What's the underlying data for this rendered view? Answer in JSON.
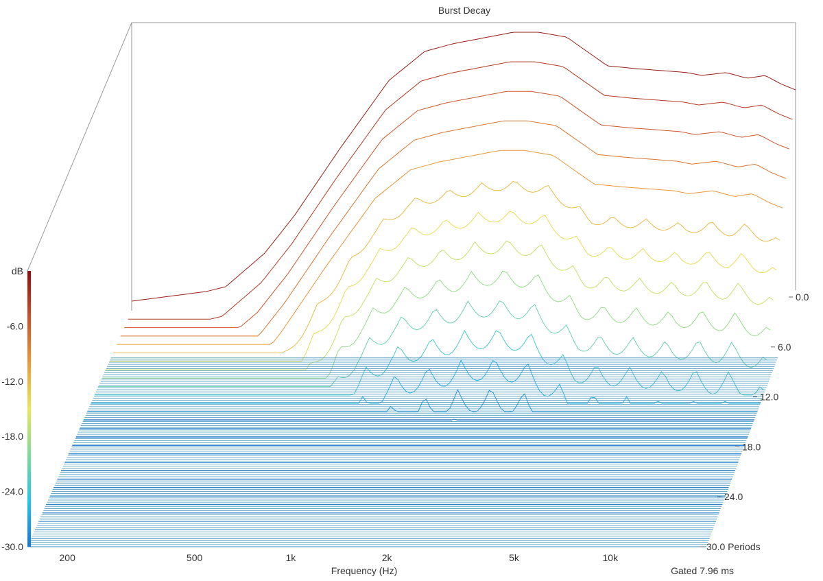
{
  "chart_data": {
    "type": "waterfall",
    "title": "Burst Decay",
    "xlabel": "Frequency (Hz)",
    "x_scale": "log",
    "x_ticks": [
      {
        "value": 200,
        "label": "200"
      },
      {
        "value": 500,
        "label": "500"
      },
      {
        "value": 1000,
        "label": "1k"
      },
      {
        "value": 2000,
        "label": "2k"
      },
      {
        "value": 5000,
        "label": "5k"
      },
      {
        "value": 10000,
        "label": "10k"
      }
    ],
    "xlim": [
      150,
      20000
    ],
    "depth_ticks": [
      {
        "value": 0,
        "label": "0.0"
      },
      {
        "value": 6,
        "label": "6.0"
      },
      {
        "value": 12,
        "label": "12.0"
      },
      {
        "value": 18,
        "label": "18.0"
      },
      {
        "value": 24,
        "label": "24.0"
      },
      {
        "value": 30,
        "label": "30.0 Periods"
      }
    ],
    "depth_range": [
      0,
      30
    ],
    "colorbar": {
      "unit": "dB",
      "ticks": [
        "-6.0",
        "-12.0",
        "-18.0",
        "-24.0",
        "-30.0"
      ],
      "range": [
        -30,
        0
      ],
      "colors": [
        "#1a75d6",
        "#27c4e8",
        "#7fd99a",
        "#e8e85a",
        "#e89a3a",
        "#c8502a",
        "#8b1010"
      ]
    },
    "footer_note": "Gated 7.96 ms",
    "response_peak_db": {
      "frequency_hz": [
        150,
        260,
        300,
        400,
        500,
        700,
        1000,
        1300,
        1600,
        2000,
        2500,
        3000,
        3700,
        4300,
        5000,
        6200,
        7500,
        9000,
        10000,
        12000,
        14000,
        16000,
        18000,
        20000
      ],
      "level_db": [
        -29,
        -28,
        -27.5,
        -24,
        -20,
        -13,
        -6,
        -3,
        -2.2,
        -1.6,
        -1,
        -1,
        -1.5,
        -3,
        -4.5,
        -4.8,
        -5,
        -5.2,
        -5.5,
        -5.2,
        -5.8,
        -5.5,
        -6.4,
        -7
      ]
    },
    "floor_db": -30,
    "slices": 28
  }
}
